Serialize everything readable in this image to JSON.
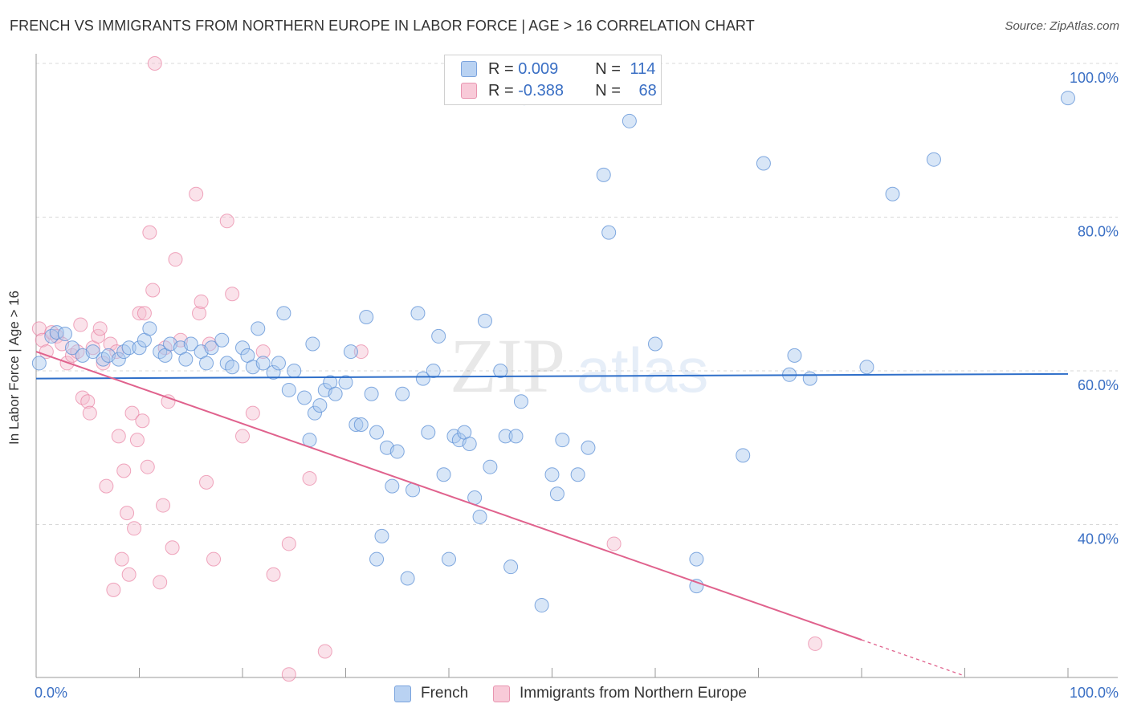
{
  "title": "FRENCH VS IMMIGRANTS FROM NORTHERN EUROPE IN LABOR FORCE | AGE > 16 CORRELATION CHART",
  "source": "Source: ZipAtlas.com",
  "watermark": {
    "zip": "ZIP",
    "atlas": "atlas"
  },
  "colors": {
    "french": "#5b8fd6",
    "immigrants": "#e87a9c",
    "french_fill": "#a9c7ee",
    "immigrants_fill": "#f5bfd0",
    "axis_text": "#3a6fc4"
  },
  "legend": {
    "rows": [
      {
        "r_label": "R = ",
        "r_value": "0.009",
        "n_label": "N = ",
        "n_value": "114"
      },
      {
        "r_label": "R = ",
        "r_value": "-0.388",
        "n_label": "N = ",
        "n_value": "68"
      }
    ]
  },
  "bottom_legend": [
    "French",
    "Immigrants from Northern Europe"
  ],
  "chart_data": {
    "type": "scatter",
    "title": "FRENCH VS IMMIGRANTS FROM NORTHERN EUROPE IN LABOR FORCE | AGE > 16 CORRELATION CHART",
    "xlabel": "",
    "ylabel": "In Labor Force | Age > 16",
    "xlim": [
      0,
      100
    ],
    "ylim": [
      20,
      102
    ],
    "x_tick_labels": [
      "0.0%",
      "100.0%"
    ],
    "y_tick_labels": [
      "100.0%",
      "80.0%",
      "60.0%",
      "40.0%"
    ],
    "y_ticks": [
      100,
      80,
      60,
      40
    ],
    "grid": true,
    "series": [
      {
        "name": "French",
        "trend": {
          "x": [
            0,
            100
          ],
          "y": [
            59.0,
            59.6
          ]
        },
        "points": [
          [
            0.3,
            61.0
          ],
          [
            1.5,
            64.5
          ],
          [
            2.0,
            65.0
          ],
          [
            2.8,
            64.8
          ],
          [
            3.5,
            63.0
          ],
          [
            4.5,
            62.0
          ],
          [
            5.5,
            62.5
          ],
          [
            6.5,
            61.5
          ],
          [
            7.0,
            62.0
          ],
          [
            8.0,
            61.5
          ],
          [
            8.5,
            62.5
          ],
          [
            9.0,
            63.0
          ],
          [
            10.0,
            63.0
          ],
          [
            10.5,
            64.0
          ],
          [
            11.0,
            65.5
          ],
          [
            12.0,
            62.5
          ],
          [
            12.5,
            62.0
          ],
          [
            13.0,
            63.5
          ],
          [
            14.0,
            63.0
          ],
          [
            14.5,
            61.5
          ],
          [
            15.0,
            63.5
          ],
          [
            16.0,
            62.5
          ],
          [
            16.5,
            61.0
          ],
          [
            17.0,
            63.0
          ],
          [
            18.0,
            64.0
          ],
          [
            18.5,
            61.0
          ],
          [
            19.0,
            60.5
          ],
          [
            20.0,
            63.0
          ],
          [
            20.5,
            62.0
          ],
          [
            21.0,
            60.5
          ],
          [
            21.5,
            65.5
          ],
          [
            22.0,
            61.0
          ],
          [
            23.0,
            59.8
          ],
          [
            23.5,
            61.0
          ],
          [
            24.0,
            67.5
          ],
          [
            24.5,
            57.5
          ],
          [
            25.0,
            60.0
          ],
          [
            26.0,
            56.5
          ],
          [
            26.5,
            51.0
          ],
          [
            26.8,
            63.5
          ],
          [
            27.0,
            54.5
          ],
          [
            27.5,
            55.5
          ],
          [
            28.0,
            57.5
          ],
          [
            28.5,
            58.5
          ],
          [
            29.0,
            57.0
          ],
          [
            30.0,
            58.5
          ],
          [
            30.5,
            62.5
          ],
          [
            31.0,
            53.0
          ],
          [
            31.5,
            53.0
          ],
          [
            32.0,
            67.0
          ],
          [
            32.5,
            57.0
          ],
          [
            33.0,
            52.0
          ],
          [
            33.5,
            38.5
          ],
          [
            33.0,
            35.5
          ],
          [
            34.0,
            50.0
          ],
          [
            34.5,
            45.0
          ],
          [
            35.0,
            49.5
          ],
          [
            35.5,
            57.0
          ],
          [
            36.0,
            33.0
          ],
          [
            36.5,
            44.5
          ],
          [
            37.0,
            67.5
          ],
          [
            37.5,
            59.0
          ],
          [
            38.0,
            52.0
          ],
          [
            38.5,
            60.0
          ],
          [
            39.0,
            64.5
          ],
          [
            39.5,
            46.5
          ],
          [
            40.0,
            35.5
          ],
          [
            40.5,
            51.5
          ],
          [
            41.0,
            51.0
          ],
          [
            41.5,
            52.0
          ],
          [
            42.0,
            50.5
          ],
          [
            42.5,
            43.5
          ],
          [
            43.0,
            41.0
          ],
          [
            43.5,
            66.5
          ],
          [
            44.0,
            47.5
          ],
          [
            45.0,
            60.0
          ],
          [
            45.5,
            51.5
          ],
          [
            46.0,
            34.5
          ],
          [
            46.5,
            51.5
          ],
          [
            47.0,
            56.0
          ],
          [
            47.3,
            95.5
          ],
          [
            49.0,
            29.5
          ],
          [
            50.0,
            46.5
          ],
          [
            50.5,
            44.0
          ],
          [
            51.0,
            51.0
          ],
          [
            52.5,
            46.5
          ],
          [
            53.5,
            50.0
          ],
          [
            55.0,
            85.5
          ],
          [
            55.5,
            78.0
          ],
          [
            57.5,
            92.5
          ],
          [
            60.0,
            63.5
          ],
          [
            64.0,
            35.5
          ],
          [
            64.0,
            32.0
          ],
          [
            68.5,
            49.0
          ],
          [
            70.5,
            87.0
          ],
          [
            73.0,
            59.5
          ],
          [
            73.5,
            62.0
          ],
          [
            75.0,
            59.0
          ],
          [
            80.5,
            60.5
          ],
          [
            83.0,
            83.0
          ],
          [
            87.0,
            87.5
          ],
          [
            100.0,
            95.5
          ]
        ]
      },
      {
        "name": "Immigrants from Northern Europe",
        "trend": {
          "x": [
            0,
            80
          ],
          "y": [
            62.5,
            25.0
          ],
          "dash_x": [
            80,
            90
          ],
          "dash_y": [
            25.0,
            20.3
          ]
        },
        "points": [
          [
            0.3,
            65.5
          ],
          [
            0.6,
            64.0
          ],
          [
            1.0,
            62.5
          ],
          [
            1.5,
            65.0
          ],
          [
            2.0,
            64.5
          ],
          [
            2.5,
            63.5
          ],
          [
            3.0,
            61.0
          ],
          [
            3.5,
            62.0
          ],
          [
            4.0,
            62.5
          ],
          [
            4.3,
            66.0
          ],
          [
            4.5,
            56.5
          ],
          [
            5.0,
            56.0
          ],
          [
            5.2,
            54.5
          ],
          [
            5.5,
            63.0
          ],
          [
            6.0,
            64.5
          ],
          [
            6.2,
            65.5
          ],
          [
            6.5,
            61.0
          ],
          [
            6.8,
            45.0
          ],
          [
            7.2,
            63.5
          ],
          [
            7.5,
            31.5
          ],
          [
            7.8,
            62.5
          ],
          [
            8.0,
            51.5
          ],
          [
            8.3,
            35.5
          ],
          [
            8.5,
            47.0
          ],
          [
            8.8,
            41.5
          ],
          [
            9.0,
            33.5
          ],
          [
            9.3,
            54.5
          ],
          [
            9.5,
            39.5
          ],
          [
            9.8,
            51.0
          ],
          [
            10.0,
            67.5
          ],
          [
            10.3,
            53.5
          ],
          [
            10.5,
            67.5
          ],
          [
            10.8,
            47.5
          ],
          [
            11.0,
            78.0
          ],
          [
            11.3,
            70.5
          ],
          [
            11.5,
            100.0
          ],
          [
            12.0,
            32.5
          ],
          [
            12.3,
            42.5
          ],
          [
            12.5,
            63.0
          ],
          [
            12.8,
            56.0
          ],
          [
            13.2,
            37.0
          ],
          [
            13.5,
            74.5
          ],
          [
            14.0,
            64.0
          ],
          [
            15.5,
            83.0
          ],
          [
            15.8,
            67.5
          ],
          [
            16.0,
            69.0
          ],
          [
            16.5,
            45.5
          ],
          [
            16.8,
            63.5
          ],
          [
            17.2,
            35.5
          ],
          [
            18.5,
            79.5
          ],
          [
            19.0,
            70.0
          ],
          [
            20.0,
            51.5
          ],
          [
            21.0,
            54.5
          ],
          [
            22.0,
            62.5
          ],
          [
            23.0,
            33.5
          ],
          [
            24.5,
            37.5
          ],
          [
            24.5,
            20.5
          ],
          [
            26.5,
            46.0
          ],
          [
            28.0,
            23.5
          ],
          [
            31.5,
            62.5
          ],
          [
            56.0,
            37.5
          ],
          [
            75.5,
            24.5
          ]
        ]
      }
    ]
  }
}
